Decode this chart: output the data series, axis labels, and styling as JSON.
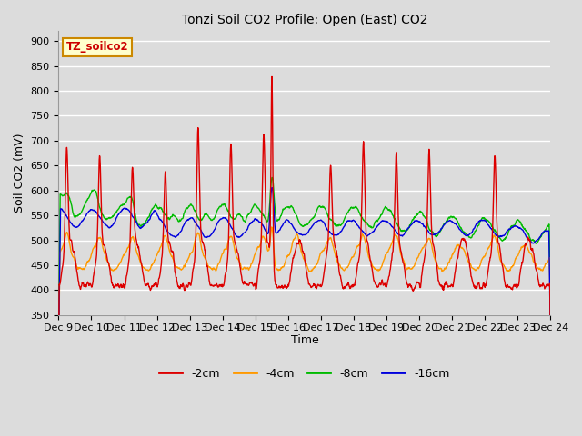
{
  "title": "Tonzi Soil CO2 Profile: Open (East) CO2",
  "ylabel": "Soil CO2 (mV)",
  "xlabel": "Time",
  "annotation": "TZ_soilco2",
  "annotation_color": "#CC0000",
  "annotation_bg": "#FFFFCC",
  "annotation_border": "#CC8800",
  "ylim": [
    350,
    920
  ],
  "yticks": [
    350,
    400,
    450,
    500,
    550,
    600,
    650,
    700,
    750,
    800,
    850,
    900
  ],
  "xtick_labels": [
    "Dec 9",
    "Dec 10",
    "Dec 11",
    "Dec 12",
    "Dec 13",
    "Dec 14",
    "Dec 15",
    "Dec 16",
    "Dec 17",
    "Dec 18",
    "Dec 19",
    "Dec 20",
    "Dec 21",
    "Dec 22",
    "Dec 23",
    "Dec 24"
  ],
  "line_colors": [
    "#DD0000",
    "#FF9900",
    "#00BB00",
    "#0000DD"
  ],
  "line_labels": [
    "-2cm",
    "-4cm",
    "-8cm",
    "-16cm"
  ],
  "bg_color": "#DCDCDC",
  "grid_color": "#FFFFFF",
  "n_points": 1500,
  "days": 15,
  "figsize": [
    6.4,
    4.8
  ],
  "dpi": 100
}
